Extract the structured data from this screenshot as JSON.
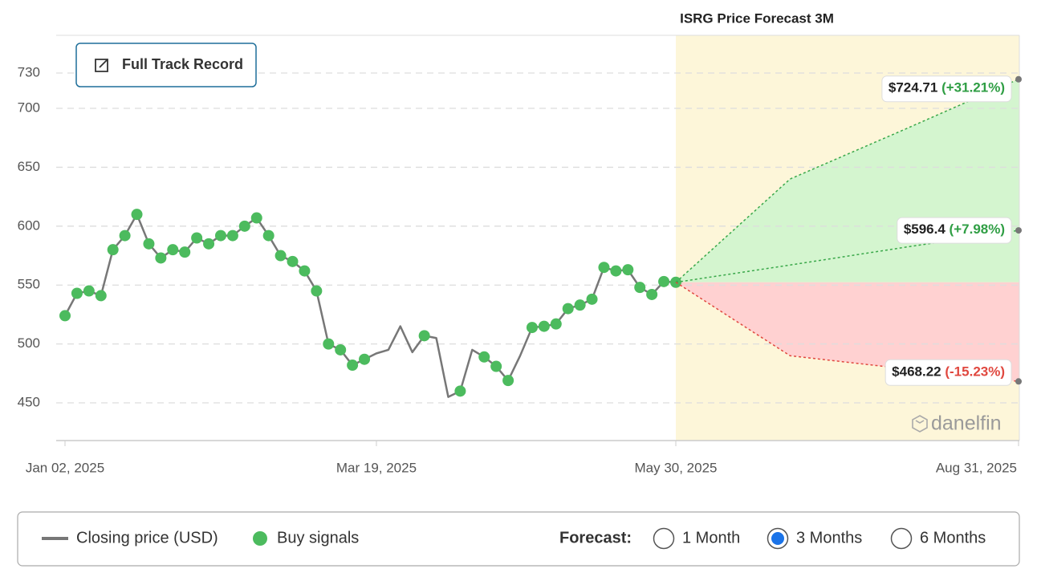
{
  "chart_data": {
    "type": "line",
    "title": "ISRG Price Forecast 3M",
    "categories": [
      "Jan 02, 2025",
      null,
      null,
      null,
      null,
      null,
      null,
      null,
      null,
      null,
      null,
      null,
      null,
      null,
      null,
      null,
      null,
      null,
      null,
      null,
      null,
      null,
      null,
      null,
      null,
      null,
      "Mar 19, 2025",
      null,
      null,
      null,
      null,
      null,
      null,
      null,
      null,
      null,
      null,
      null,
      null,
      null,
      null,
      null,
      null,
      null,
      null,
      null,
      null,
      null,
      null,
      null,
      null,
      "May 30, 2025"
    ],
    "ylim": [
      418,
      762
    ],
    "yticks": [
      450,
      500,
      550,
      600,
      650,
      700,
      730
    ],
    "grid": true,
    "series": [
      {
        "name": "Closing price (USD)",
        "color": "#777777",
        "style": "line",
        "values": [
          524,
          543,
          545,
          541,
          580,
          592,
          610,
          585,
          573,
          580,
          578,
          590,
          585,
          592,
          592,
          600,
          607,
          592,
          575,
          570,
          562,
          545,
          500,
          495,
          482,
          487,
          492,
          495,
          515,
          493,
          507,
          505,
          455,
          460,
          495,
          489,
          481,
          469,
          490,
          514,
          515,
          517,
          530,
          533,
          538,
          565,
          562,
          563,
          548,
          542,
          553,
          552.33
        ]
      },
      {
        "name": "Buy signals",
        "color": "#4cbb5e",
        "style": "dots",
        "values": [
          524,
          543,
          545,
          541,
          580,
          592,
          610,
          585,
          573,
          580,
          578,
          590,
          585,
          592,
          592,
          600,
          607,
          592,
          575,
          570,
          562,
          545,
          500,
          495,
          482,
          487,
          null,
          null,
          null,
          null,
          507,
          null,
          null,
          460,
          null,
          489,
          481,
          469,
          null,
          514,
          515,
          517,
          530,
          533,
          538,
          565,
          562,
          563,
          548,
          542,
          553,
          552.33
        ]
      }
    ],
    "forecast": {
      "band_color": "#fdf6d9",
      "categories": [
        null,
        null,
        null,
        "Aug 31, 2025"
      ],
      "series": [
        {
          "color": "#3aa84a",
          "fill": "#d4f5cf",
          "label_color": "#2f9e44",
          "values": [
            552.33,
            640,
            682,
            724.71
          ],
          "value_labels": [
            null,
            null,
            null,
            "$724.71"
          ],
          "change_labels": [
            null,
            null,
            null,
            "(+31.21%)"
          ]
        },
        {
          "color": "#3aa84a",
          "label_color": "#2f9e44",
          "values": [
            552.33,
            567,
            582,
            596.4
          ],
          "value_labels": [
            null,
            null,
            null,
            "$596.4"
          ],
          "change_labels": [
            null,
            null,
            null,
            "(+7.98%)"
          ]
        },
        {
          "color": "#e0483f",
          "fill": "#ffd1d1",
          "label_color": "#e0483f",
          "values": [
            552.33,
            490,
            479,
            468.22
          ],
          "value_labels": [
            null,
            null,
            null,
            "$468.22"
          ],
          "change_labels": [
            null,
            null,
            null,
            "(-15.23%)"
          ]
        }
      ]
    }
  },
  "controls": {
    "track_record": "Full Track Record",
    "forecast_label": "Forecast:",
    "options": [
      "1 Month",
      "3 Months",
      "6 Months"
    ],
    "selected": 1
  },
  "watermark": "danelfin"
}
